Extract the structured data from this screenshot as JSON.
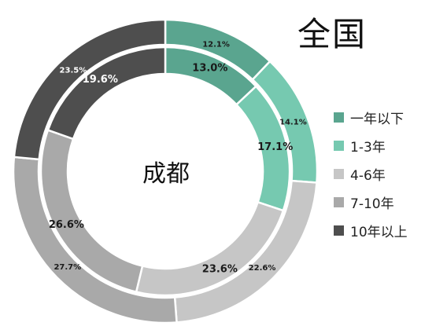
{
  "chart_data": {
    "type": "donut",
    "title": "全国",
    "center_label": "成都",
    "categories": [
      "一年以下",
      "1-3年",
      "4-6年",
      "7-10年",
      "10年以上"
    ],
    "colors": [
      "#5aa58f",
      "#76c9b0",
      "#c6c6c6",
      "#a9a9a9",
      "#4e4e4e"
    ],
    "series": [
      {
        "ring": "outer",
        "values": [
          12.1,
          14.1,
          22.6,
          27.7,
          23.5
        ],
        "labels": [
          "12.1%",
          "14.1%",
          "22.6%",
          "27.7%",
          "23.5%"
        ]
      },
      {
        "ring": "inner",
        "values": [
          13.0,
          17.1,
          23.6,
          26.6,
          19.6
        ],
        "labels": [
          "13.0%",
          "17.1%",
          "23.6%",
          "26.6%",
          "19.6%"
        ]
      }
    ],
    "legend_position": "right"
  }
}
